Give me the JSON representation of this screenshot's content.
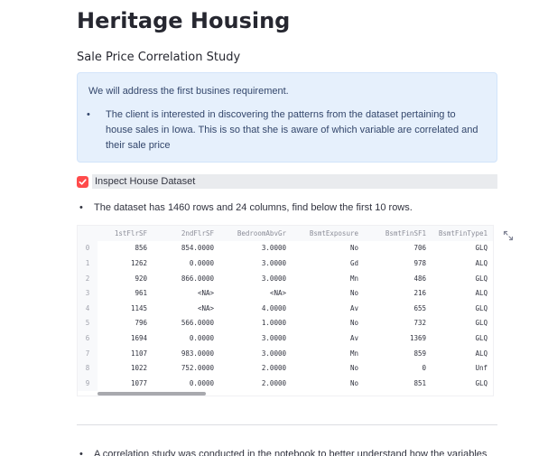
{
  "page": {
    "title": "Heritage Housing",
    "subtitle": "Sale Price Correlation Study"
  },
  "info_box": {
    "intro": "We will address the first busines requirement.",
    "bullet": "The client is interested in discovering the patterns from the dataset pertaining to house sales in Iowa. This is so that she is aware of which variable are correlated and their sale price"
  },
  "checkbox": {
    "label": "Inspect House Dataset",
    "checked": true,
    "accent_color": "#ff4b4b"
  },
  "dataset_note": "The dataset has 1460 rows and 24 columns, find below the first 10 rows.",
  "dataframe": {
    "columns": [
      "1stFlrSF",
      "2ndFlrSF",
      "BedroomAbvGr",
      "BsmtExposure",
      "BsmtFinSF1",
      "BsmtFinType1"
    ],
    "rows": [
      {
        "index": "0",
        "cells": [
          "856",
          "854.0000",
          "3.0000",
          "No",
          "706",
          "GLQ"
        ]
      },
      {
        "index": "1",
        "cells": [
          "1262",
          "0.0000",
          "3.0000",
          "Gd",
          "978",
          "ALQ"
        ]
      },
      {
        "index": "2",
        "cells": [
          "920",
          "866.0000",
          "3.0000",
          "Mn",
          "486",
          "GLQ"
        ]
      },
      {
        "index": "3",
        "cells": [
          "961",
          "<NA>",
          "<NA>",
          "No",
          "216",
          "ALQ"
        ]
      },
      {
        "index": "4",
        "cells": [
          "1145",
          "<NA>",
          "4.0000",
          "Av",
          "655",
          "GLQ"
        ]
      },
      {
        "index": "5",
        "cells": [
          "796",
          "566.0000",
          "1.0000",
          "No",
          "732",
          "GLQ"
        ]
      },
      {
        "index": "6",
        "cells": [
          "1694",
          "0.0000",
          "3.0000",
          "Av",
          "1369",
          "GLQ"
        ]
      },
      {
        "index": "7",
        "cells": [
          "1107",
          "983.0000",
          "3.0000",
          "Mn",
          "859",
          "ALQ"
        ]
      },
      {
        "index": "8",
        "cells": [
          "1022",
          "752.0000",
          "2.0000",
          "No",
          "0",
          "Unf"
        ]
      },
      {
        "index": "9",
        "cells": [
          "1077",
          "0.0000",
          "2.0000",
          "No",
          "851",
          "GLQ"
        ]
      }
    ]
  },
  "correlation_note": "A correlation study was conducted in the notebook to better understand how the variables",
  "icons": {
    "expand": "expand-arrows-icon",
    "checkmark": "checkmark-icon"
  }
}
